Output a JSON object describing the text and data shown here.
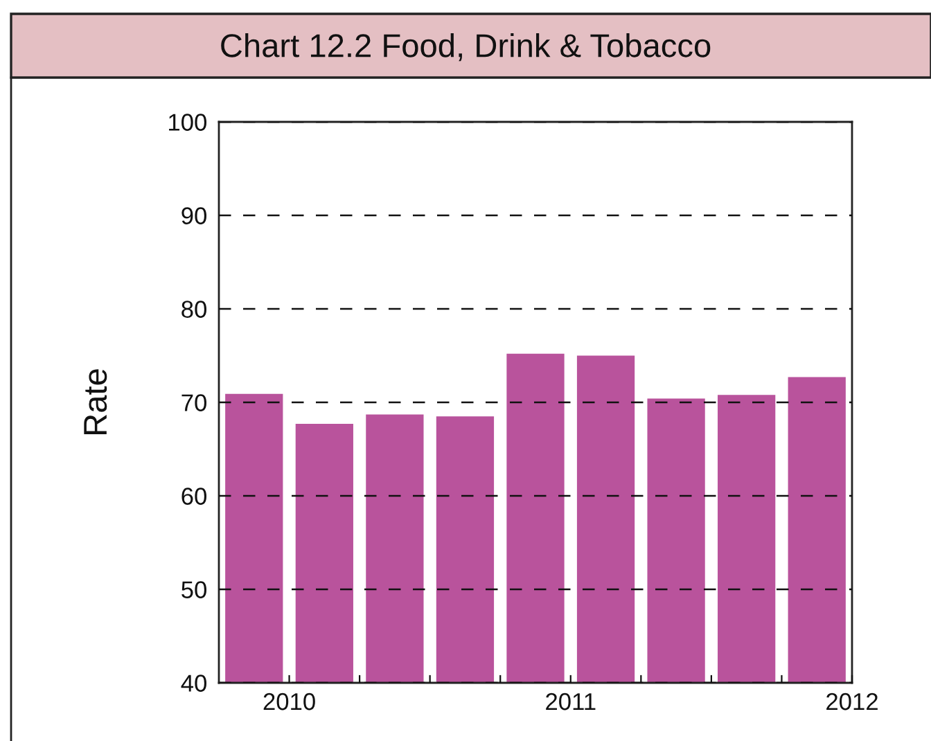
{
  "chart_data": {
    "type": "bar",
    "title": "Chart 12.2 Food, Drink & Tobacco",
    "ylabel": "Rate",
    "x": [
      2009.875,
      2010.125,
      2010.375,
      2010.625,
      2010.875,
      2011.125,
      2011.375,
      2011.625,
      2011.875
    ],
    "values": [
      70.9,
      67.7,
      68.7,
      68.5,
      75.2,
      75.0,
      70.4,
      70.8,
      72.7
    ],
    "color": "#b9539c",
    "xlim": [
      2009.75,
      2012
    ],
    "xticks": [
      2010,
      {
        "value": 2010.25,
        "label": null
      },
      {
        "value": 2010.5,
        "label": null
      },
      {
        "value": 2010.75,
        "label": null
      },
      2011,
      {
        "value": 2011.25,
        "label": null
      },
      {
        "value": 2011.5,
        "label": null
      },
      {
        "value": 2011.75,
        "label": null
      },
      2012
    ],
    "ylim": [
      40,
      100
    ],
    "yticks": [
      40,
      50,
      60,
      70,
      80,
      90,
      100
    ],
    "grid": "y"
  }
}
